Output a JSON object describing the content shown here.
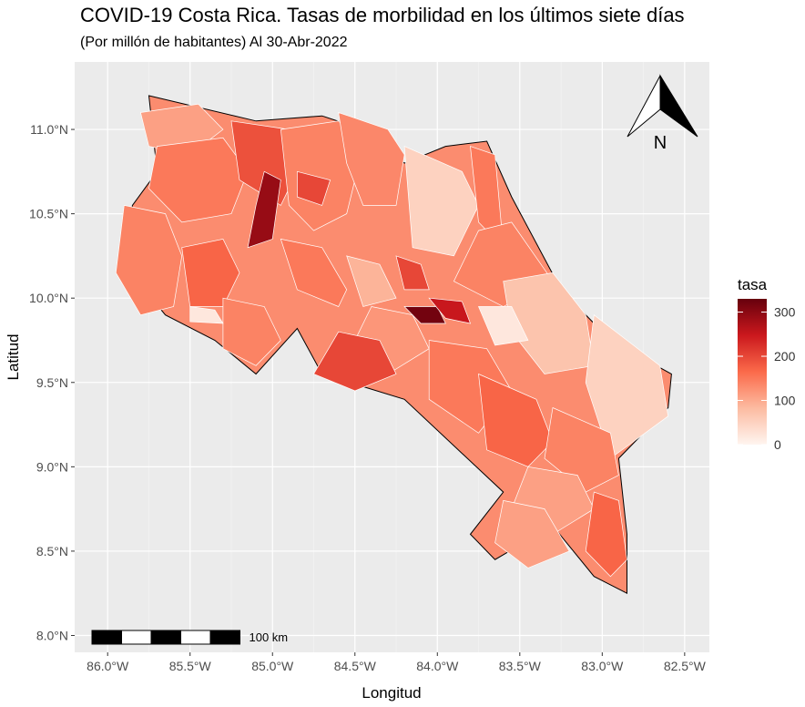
{
  "title": "COVID-19 Costa Rica. Tasas de morbilidad en los últimos siete días",
  "subtitle": "(Por millón de habitantes) Al 30-Abr-2022",
  "chart_data": {
    "type": "choropleth map",
    "xlabel": "Longitud",
    "ylabel": "Latitud",
    "x_ticks": [
      "86.0°W",
      "85.5°W",
      "85.0°W",
      "84.5°W",
      "84.0°W",
      "83.5°W",
      "83.0°W",
      "82.5°W"
    ],
    "x_tick_values": [
      -86.0,
      -85.5,
      -85.0,
      -84.5,
      -84.0,
      -83.5,
      -83.0,
      -82.5
    ],
    "y_ticks": [
      "11.0°N",
      "10.5°N",
      "10.0°N",
      "9.5°N",
      "9.0°N",
      "8.5°N",
      "8.0°N"
    ],
    "y_tick_values": [
      11.0,
      10.5,
      10.0,
      9.5,
      9.0,
      8.5,
      8.0
    ],
    "xlim": [
      -86.2,
      -82.35
    ],
    "ylim": [
      7.9,
      11.4
    ],
    "grid": true,
    "legend": {
      "title": "tasa",
      "position": "right",
      "breaks": [
        0,
        100,
        200,
        300
      ],
      "labels": [
        "0",
        "100",
        "200",
        "300"
      ],
      "range": [
        0,
        330
      ],
      "colors": [
        "#fff5f0",
        "#fcbba1",
        "#fb6a4a",
        "#cb181d",
        "#67000d"
      ]
    },
    "scale_bar": "100 km",
    "north_arrow": "N",
    "regions": [
      {
        "lon": [
          -85.8,
          -85.45,
          -85.3,
          -85.5,
          -85.75
        ],
        "lat": [
          11.1,
          11.15,
          11.0,
          10.85,
          10.9
        ],
        "value": 110
      },
      {
        "lon": [
          -85.7,
          -85.3,
          -85.15,
          -85.25,
          -85.55,
          -85.75
        ],
        "lat": [
          10.9,
          10.95,
          10.75,
          10.5,
          10.45,
          10.65
        ],
        "value": 150
      },
      {
        "lon": [
          -85.25,
          -84.9,
          -84.85,
          -84.95,
          -85.2
        ],
        "lat": [
          11.05,
          11.0,
          10.75,
          10.55,
          10.7
        ],
        "value": 190
      },
      {
        "lon": [
          -85.05,
          -84.95,
          -85.0,
          -85.15,
          -85.1
        ],
        "lat": [
          10.75,
          10.7,
          10.35,
          10.3,
          10.55
        ],
        "value": 290
      },
      {
        "lon": [
          -84.95,
          -84.6,
          -84.45,
          -84.55,
          -84.75,
          -84.9
        ],
        "lat": [
          11.0,
          11.05,
          10.9,
          10.5,
          10.4,
          10.55
        ],
        "value": 140
      },
      {
        "lon": [
          -84.85,
          -84.65,
          -84.7,
          -84.85
        ],
        "lat": [
          10.75,
          10.7,
          10.55,
          10.6
        ],
        "value": 200
      },
      {
        "lon": [
          -84.6,
          -84.3,
          -84.2,
          -84.25,
          -84.45,
          -84.55
        ],
        "lat": [
          11.1,
          11.0,
          10.85,
          10.55,
          10.55,
          10.8
        ],
        "value": 135
      },
      {
        "lon": [
          -84.2,
          -83.85,
          -83.75,
          -83.9,
          -84.15
        ],
        "lat": [
          10.9,
          10.75,
          10.55,
          10.25,
          10.3
        ],
        "value": 50
      },
      {
        "lon": [
          -83.8,
          -83.65,
          -83.6,
          -83.75
        ],
        "lat": [
          10.9,
          10.85,
          10.3,
          10.45
        ],
        "value": 150
      },
      {
        "lon": [
          -83.75,
          -83.55,
          -83.3,
          -83.6,
          -83.9
        ],
        "lat": [
          10.4,
          10.45,
          10.1,
          9.95,
          10.1
        ],
        "value": 140
      },
      {
        "lon": [
          -83.6,
          -83.3,
          -83.1,
          -83.05,
          -83.35,
          -83.55
        ],
        "lat": [
          10.1,
          10.15,
          9.9,
          9.6,
          9.55,
          9.8
        ],
        "value": 70
      },
      {
        "lon": [
          -83.05,
          -82.85,
          -82.65,
          -82.6,
          -82.95,
          -83.1
        ],
        "lat": [
          9.9,
          9.75,
          9.6,
          9.3,
          9.05,
          9.5
        ],
        "value": 50
      },
      {
        "lon": [
          -85.9,
          -85.65,
          -85.55,
          -85.6,
          -85.8,
          -85.95
        ],
        "lat": [
          10.55,
          10.5,
          10.25,
          9.95,
          9.9,
          10.15
        ],
        "value": 140
      },
      {
        "lon": [
          -85.55,
          -85.3,
          -85.2,
          -85.3,
          -85.5
        ],
        "lat": [
          10.3,
          10.35,
          10.15,
          9.95,
          9.95
        ],
        "value": 170
      },
      {
        "lon": [
          -85.3,
          -85.05,
          -84.95,
          -85.1,
          -85.3
        ],
        "lat": [
          10.0,
          9.95,
          9.75,
          9.6,
          9.7
        ],
        "value": 140
      },
      {
        "lon": [
          -84.95,
          -84.7,
          -84.55,
          -84.6,
          -84.85
        ],
        "lat": [
          10.35,
          10.3,
          10.05,
          9.95,
          10.05
        ],
        "value": 150
      },
      {
        "lon": [
          -84.55,
          -84.35,
          -84.25,
          -84.45
        ],
        "lat": [
          10.25,
          10.2,
          10.0,
          9.95
        ],
        "value": 90
      },
      {
        "lon": [
          -84.25,
          -84.1,
          -84.05,
          -84.2
        ],
        "lat": [
          10.25,
          10.2,
          10.05,
          10.05
        ],
        "value": 200
      },
      {
        "lon": [
          -84.2,
          -84.0,
          -83.95,
          -84.1
        ],
        "lat": [
          9.95,
          9.95,
          9.85,
          9.85
        ],
        "value": 320
      },
      {
        "lon": [
          -84.05,
          -83.85,
          -83.8,
          -83.95
        ],
        "lat": [
          10.0,
          9.98,
          9.85,
          9.88
        ],
        "value": 250
      },
      {
        "lon": [
          -84.4,
          -84.15,
          -84.05,
          -84.3,
          -84.55
        ],
        "lat": [
          9.95,
          9.9,
          9.7,
          9.55,
          9.65
        ],
        "value": 120
      },
      {
        "lon": [
          -84.6,
          -84.35,
          -84.25,
          -84.5,
          -84.75
        ],
        "lat": [
          9.8,
          9.75,
          9.55,
          9.45,
          9.55
        ],
        "value": 200
      },
      {
        "lon": [
          -84.05,
          -83.7,
          -83.55,
          -83.75,
          -84.05
        ],
        "lat": [
          9.75,
          9.7,
          9.45,
          9.2,
          9.4
        ],
        "value": 150
      },
      {
        "lon": [
          -83.75,
          -83.4,
          -83.3,
          -83.45,
          -83.7
        ],
        "lat": [
          9.55,
          9.4,
          9.15,
          9.0,
          9.1
        ],
        "value": 170
      },
      {
        "lon": [
          -83.3,
          -82.95,
          -82.9,
          -83.1,
          -83.35
        ],
        "lat": [
          9.35,
          9.2,
          8.95,
          8.85,
          9.05
        ],
        "value": 140
      },
      {
        "lon": [
          -83.45,
          -83.15,
          -83.05,
          -83.3,
          -83.55
        ],
        "lat": [
          9.0,
          8.95,
          8.75,
          8.6,
          8.75
        ],
        "value": 110
      },
      {
        "lon": [
          -83.05,
          -82.9,
          -82.85,
          -82.95,
          -83.1
        ],
        "lat": [
          8.85,
          8.8,
          8.45,
          8.35,
          8.5
        ],
        "value": 170
      },
      {
        "lon": [
          -83.6,
          -83.35,
          -83.2,
          -83.45,
          -83.65
        ],
        "lat": [
          8.8,
          8.75,
          8.5,
          8.4,
          8.55
        ],
        "value": 110
      },
      {
        "lon": [
          -85.5,
          -85.35,
          -85.3,
          -85.5
        ],
        "lat": [
          9.95,
          9.93,
          9.85,
          9.86
        ],
        "value": 20
      },
      {
        "lon": [
          -83.75,
          -83.55,
          -83.45,
          -83.65
        ],
        "lat": [
          9.95,
          9.95,
          9.75,
          9.72
        ],
        "value": 20
      }
    ]
  }
}
